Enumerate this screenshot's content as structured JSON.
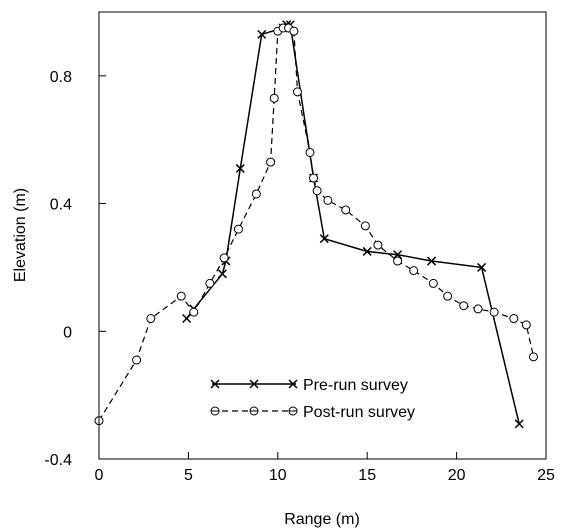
{
  "chart_data": {
    "type": "line",
    "xlabel": "Range (m)",
    "ylabel": "Elevation (m)",
    "xlim": [
      0,
      25
    ],
    "ylim": [
      -0.4,
      1.0
    ],
    "xticks": [
      0,
      5,
      10,
      15,
      20,
      25
    ],
    "yticks": [
      -0.4,
      0,
      0.4,
      0.8
    ],
    "xtick_labels": [
      "0",
      "5",
      "10",
      "15",
      "20",
      "25"
    ],
    "ytick_labels": [
      "-0.4",
      "0",
      "0.4",
      "0.8"
    ],
    "grid": false,
    "legend_position": "lower-center",
    "series": [
      {
        "name": "Pre-run survey",
        "line_style": "solid",
        "marker": "x",
        "color": "#000000",
        "points": [
          [
            4.9,
            0.04
          ],
          [
            5.3,
            0.07
          ],
          [
            6.9,
            0.18
          ],
          [
            7.1,
            0.22
          ],
          [
            7.9,
            0.51
          ],
          [
            9.1,
            0.93
          ],
          [
            10.3,
            0.95
          ],
          [
            10.5,
            0.96
          ],
          [
            10.7,
            0.96
          ],
          [
            12.0,
            0.48
          ],
          [
            12.6,
            0.29
          ],
          [
            15.0,
            0.25
          ],
          [
            16.7,
            0.24
          ],
          [
            18.6,
            0.22
          ],
          [
            21.4,
            0.2
          ],
          [
            23.5,
            -0.29
          ]
        ]
      },
      {
        "name": "Post-run survey",
        "line_style": "dashed",
        "marker": "circle",
        "color": "#000000",
        "points": [
          [
            0.0,
            -0.28
          ],
          [
            2.1,
            -0.09
          ],
          [
            2.9,
            0.04
          ],
          [
            4.6,
            0.11
          ],
          [
            5.3,
            0.06
          ],
          [
            6.2,
            0.15
          ],
          [
            7.0,
            0.23
          ],
          [
            7.8,
            0.32
          ],
          [
            8.8,
            0.43
          ],
          [
            9.6,
            0.53
          ],
          [
            9.8,
            0.73
          ],
          [
            10.0,
            0.94
          ],
          [
            10.3,
            0.95
          ],
          [
            10.6,
            0.95
          ],
          [
            10.9,
            0.94
          ],
          [
            11.1,
            0.75
          ],
          [
            11.8,
            0.56
          ],
          [
            12.0,
            0.48
          ],
          [
            12.2,
            0.44
          ],
          [
            12.8,
            0.41
          ],
          [
            13.8,
            0.38
          ],
          [
            14.9,
            0.33
          ],
          [
            15.6,
            0.27
          ],
          [
            16.7,
            0.22
          ],
          [
            17.6,
            0.19
          ],
          [
            18.7,
            0.15
          ],
          [
            19.5,
            0.11
          ],
          [
            20.4,
            0.08
          ],
          [
            21.2,
            0.07
          ],
          [
            22.1,
            0.06
          ],
          [
            23.2,
            0.04
          ],
          [
            23.9,
            0.02
          ],
          [
            24.3,
            -0.08
          ]
        ]
      }
    ]
  }
}
